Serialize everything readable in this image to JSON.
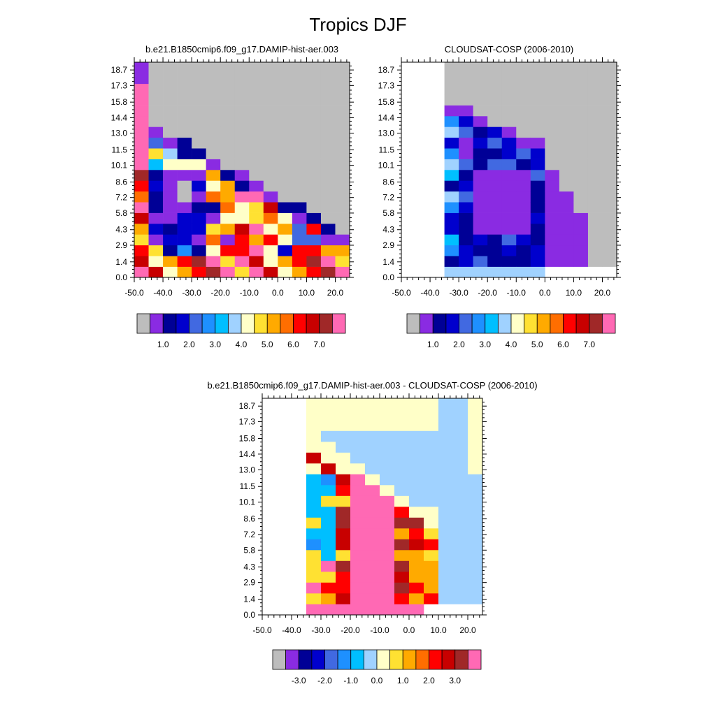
{
  "figure_title": "Tropics DJF",
  "chart_data": [
    {
      "type": "heatmap",
      "title": "b.e21.B1850cmip6.f09_g17.DAMIP-hist-aer.003",
      "xlabel": "",
      "ylabel": "",
      "x_ticks": [
        "-50.0",
        "-40.0",
        "-30.0",
        "-20.0",
        "-10.0",
        "0.0",
        "10.0",
        "20.0"
      ],
      "y_ticks": [
        "0.0",
        "1.4",
        "2.9",
        "4.3",
        "5.8",
        "7.2",
        "8.6",
        "10.1",
        "11.5",
        "13.0",
        "14.4",
        "15.8",
        "17.3",
        "18.7"
      ],
      "xlim": [
        -50,
        25
      ],
      "ylim": [
        0,
        19.4
      ],
      "missing_color": "#bdbdbd",
      "colorbar": {
        "colors": [
          "#bdbdbd",
          "#8a2be2",
          "#000096",
          "#0000cd",
          "#4169e1",
          "#1e90ff",
          "#00bfff",
          "#a0d2ff",
          "#ffffc8",
          "#ffe132",
          "#ffaa00",
          "#ff6e00",
          "#ff0000",
          "#c80000",
          "#a02828",
          "#ff69b4"
        ],
        "labels": [
          "1.0",
          "2.0",
          "3.0",
          "4.0",
          "5.0",
          "6.0",
          "7.0"
        ]
      }
    },
    {
      "type": "heatmap",
      "title": "CLOUDSAT-COSP (2006-2010)",
      "xlabel": "",
      "ylabel": "",
      "x_ticks": [
        "-50.0",
        "-40.0",
        "-30.0",
        "-20.0",
        "-10.0",
        "0.0",
        "10.0",
        "20.0"
      ],
      "y_ticks": [
        "0.0",
        "1.4",
        "2.9",
        "4.3",
        "5.8",
        "7.2",
        "8.6",
        "10.1",
        "11.5",
        "13.0",
        "14.4",
        "15.8",
        "17.3",
        "18.7"
      ],
      "xlim": [
        -50,
        25
      ],
      "ylim": [
        0,
        19.4
      ],
      "missing_color": "#bdbdbd",
      "colorbar": {
        "colors": [
          "#bdbdbd",
          "#8a2be2",
          "#000096",
          "#0000cd",
          "#4169e1",
          "#1e90ff",
          "#00bfff",
          "#a0d2ff",
          "#ffffc8",
          "#ffe132",
          "#ffaa00",
          "#ff6e00",
          "#ff0000",
          "#c80000",
          "#a02828",
          "#ff69b4"
        ],
        "labels": [
          "1.0",
          "2.0",
          "3.0",
          "4.0",
          "5.0",
          "6.0",
          "7.0"
        ]
      }
    },
    {
      "type": "heatmap",
      "title": "b.e21.B1850cmip6.f09_g17.DAMIP-hist-aer.003 - CLOUDSAT-COSP (2006-2010)",
      "xlabel": "",
      "ylabel": "",
      "x_ticks": [
        "-50.0",
        "-40.0",
        "-30.0",
        "-20.0",
        "-10.0",
        "0.0",
        "10.0",
        "20.0"
      ],
      "y_ticks": [
        "0.0",
        "1.4",
        "2.9",
        "4.3",
        "5.8",
        "7.2",
        "8.6",
        "10.1",
        "11.5",
        "13.0",
        "14.4",
        "15.8",
        "17.3",
        "18.7"
      ],
      "xlim": [
        -50,
        25
      ],
      "ylim": [
        0,
        19.4
      ],
      "colorbar": {
        "colors": [
          "#bdbdbd",
          "#8a2be2",
          "#000096",
          "#0000cd",
          "#4169e1",
          "#1e90ff",
          "#00bfff",
          "#a0d2ff",
          "#ffffc8",
          "#ffe132",
          "#ffaa00",
          "#ff6e00",
          "#ff0000",
          "#c80000",
          "#a02828",
          "#ff69b4"
        ],
        "labels": [
          "-3.0",
          "-2.0",
          "-1.0",
          "0.0",
          "1.0",
          "2.0",
          "3.0"
        ]
      }
    }
  ]
}
